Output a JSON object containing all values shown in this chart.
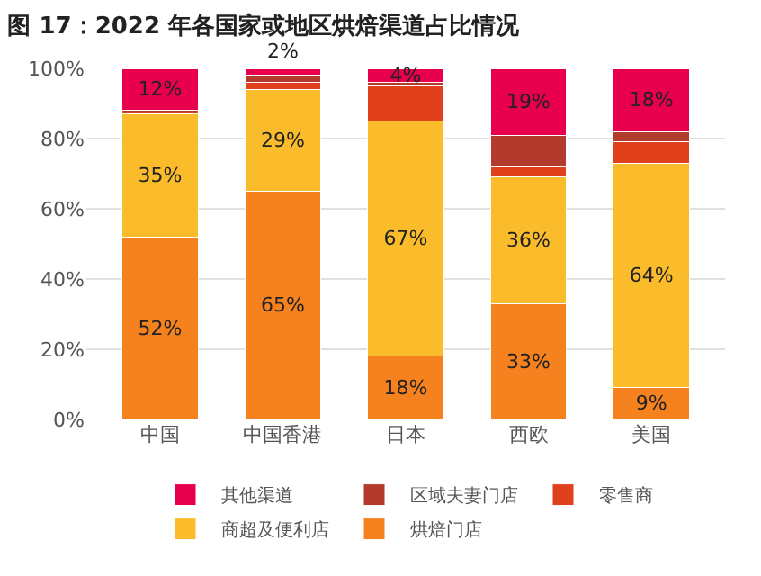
{
  "chart_data": {
    "type": "bar",
    "title": "图 17：2022 年各国家或地区烘焙渠道占比情况",
    "categories": [
      "中国",
      "中国香港",
      "日本",
      "西欧",
      "美国"
    ],
    "stacked": true,
    "ylim": [
      0,
      100
    ],
    "yticks": [
      {
        "value": 0,
        "label": "0%"
      },
      {
        "value": 20,
        "label": "20%"
      },
      {
        "value": 40,
        "label": "40%"
      },
      {
        "value": 60,
        "label": "60%"
      },
      {
        "value": 80,
        "label": "80%"
      },
      {
        "value": 100,
        "label": "100%"
      }
    ],
    "grid": "y",
    "legend": "bottom",
    "series": [
      {
        "name": "烘焙门店",
        "color": "#f5821f",
        "values": [
          52,
          65,
          18,
          33,
          9
        ],
        "value_labels": [
          "52%",
          "65%",
          "18%",
          "33%",
          "9%"
        ]
      },
      {
        "name": "商超及便利店",
        "color": "#fbbc2c",
        "values": [
          35,
          29,
          67,
          36,
          64
        ],
        "value_labels": [
          "35%",
          "29%",
          "67%",
          "36%",
          "64%"
        ]
      },
      {
        "name": "零售商",
        "color": "#e0401c",
        "values": [
          0.5,
          2,
          10,
          3,
          6
        ],
        "value_labels": [
          null,
          null,
          null,
          null,
          null
        ]
      },
      {
        "name": "区域夫妻门店",
        "color": "#b33b2e",
        "values": [
          0.5,
          2,
          1,
          9,
          3
        ],
        "value_labels": [
          null,
          null,
          null,
          null,
          null
        ]
      },
      {
        "name": "其他渠道",
        "color": "#e8004f",
        "values": [
          12,
          2,
          4,
          19,
          18
        ],
        "value_labels": [
          "12%",
          "2%",
          "4%",
          "19%",
          "18%"
        ]
      }
    ]
  }
}
